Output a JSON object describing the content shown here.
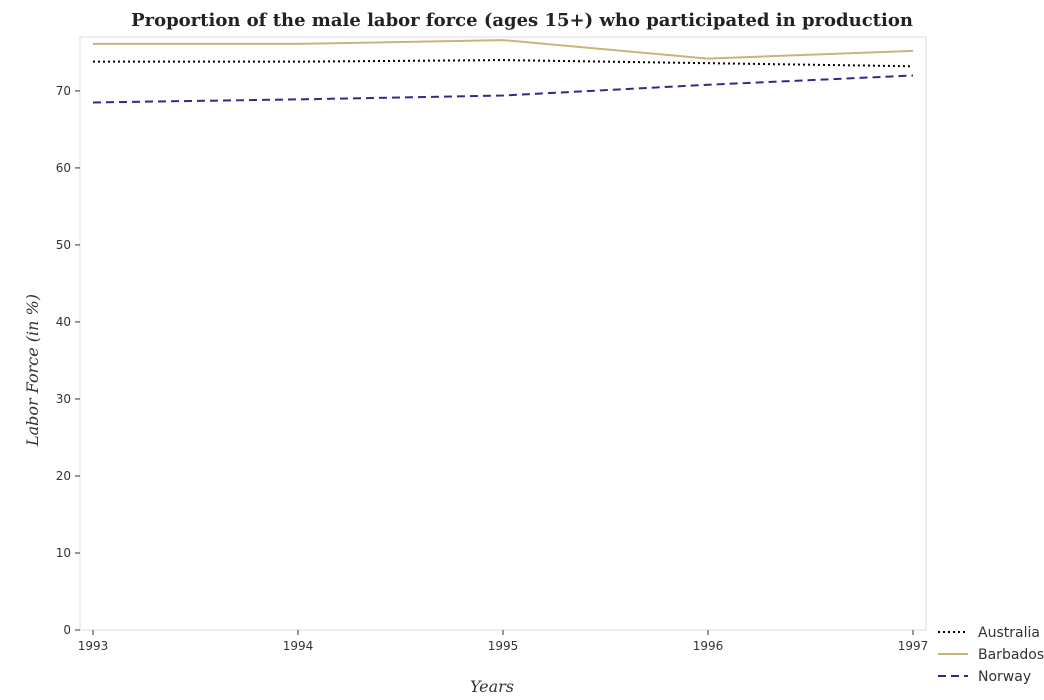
{
  "chart_data": {
    "type": "line",
    "title": "Proportion of the male labor force (ages 15+) who participated in production",
    "xlabel": "Years",
    "ylabel": "Labor Force (in %)",
    "categories": [
      "1993",
      "1994",
      "1995",
      "1996",
      "1997"
    ],
    "ylim": [
      0,
      77
    ],
    "yticks": [
      0,
      10,
      20,
      30,
      40,
      50,
      60,
      70
    ],
    "grid": false,
    "legend_position": "bottom-right",
    "series": [
      {
        "name": "Australia",
        "values": [
          73.8,
          73.8,
          74.0,
          73.6,
          73.2
        ],
        "color": "#000000",
        "dash": "dotted"
      },
      {
        "name": "Barbados",
        "values": [
          76.1,
          76.1,
          76.6,
          74.2,
          75.2
        ],
        "color": "#c8b47a",
        "dash": "solid"
      },
      {
        "name": "Norway",
        "values": [
          68.5,
          68.9,
          69.4,
          70.8,
          72.0
        ],
        "color": "#2c2c8c",
        "dash": "dashed"
      }
    ]
  }
}
